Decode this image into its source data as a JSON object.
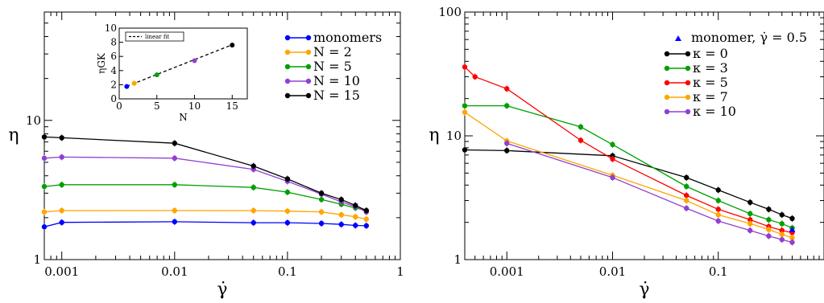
{
  "chart_data": [
    {
      "type": "line",
      "x_scale": "log",
      "y_scale": "log",
      "xlim": [
        0.0007,
        1
      ],
      "ylim": [
        1,
        60
      ],
      "xlabel": "γ̇",
      "ylabel": "η",
      "x_ticks": [
        {
          "value": 0.001,
          "label": "0.001"
        },
        {
          "value": 0.01,
          "label": "0.01"
        },
        {
          "value": 0.1,
          "label": "0.1"
        },
        {
          "value": 1,
          "label": "1"
        }
      ],
      "y_ticks": [
        {
          "value": 1,
          "label": "1"
        },
        {
          "value": 10,
          "label": "10"
        }
      ],
      "legend_position": "top-right",
      "series": [
        {
          "name": "monomers",
          "color": "#0000ff",
          "x": [
            0.0007,
            0.001,
            0.01,
            0.05,
            0.1,
            0.2,
            0.3,
            0.4,
            0.5
          ],
          "y": [
            1.72,
            1.85,
            1.87,
            1.84,
            1.84,
            1.82,
            1.79,
            1.76,
            1.75
          ]
        },
        {
          "name": "N = 2",
          "color": "#ffa500",
          "x": [
            0.0007,
            0.001,
            0.01,
            0.05,
            0.1,
            0.2,
            0.3,
            0.4,
            0.5
          ],
          "y": [
            2.2,
            2.25,
            2.25,
            2.25,
            2.23,
            2.2,
            2.1,
            2.03,
            1.95
          ]
        },
        {
          "name": "N = 5",
          "color": "#00a000",
          "x": [
            0.0007,
            0.001,
            0.01,
            0.05,
            0.1,
            0.2,
            0.3,
            0.4,
            0.5
          ],
          "y": [
            3.35,
            3.45,
            3.45,
            3.3,
            3.05,
            2.7,
            2.5,
            2.35,
            2.25
          ]
        },
        {
          "name": "N = 10",
          "color": "#9040d0",
          "x": [
            0.0007,
            0.001,
            0.01,
            0.05,
            0.1,
            0.2,
            0.3,
            0.4,
            0.5
          ],
          "y": [
            5.35,
            5.45,
            5.35,
            4.45,
            3.65,
            2.95,
            2.6,
            2.4,
            2.2
          ]
        },
        {
          "name": "N = 15",
          "color": "#000000",
          "x": [
            0.0007,
            0.001,
            0.01,
            0.05,
            0.1,
            0.2,
            0.3,
            0.4,
            0.5
          ],
          "y": [
            7.6,
            7.5,
            6.85,
            4.7,
            3.8,
            3.0,
            2.7,
            2.45,
            2.25
          ]
        }
      ],
      "inset": {
        "type": "scatter",
        "xlabel": "N",
        "ylabel": "ηGK",
        "xlim": [
          0,
          17
        ],
        "ylim": [
          0,
          10
        ],
        "x_ticks": [
          0,
          5,
          10,
          15
        ],
        "y_ticks": [
          0,
          2,
          4,
          6,
          8,
          10
        ],
        "points": [
          {
            "x": 1,
            "y": 1.75,
            "color": "#0000ff"
          },
          {
            "x": 2,
            "y": 2.2,
            "color": "#ffa500"
          },
          {
            "x": 5,
            "y": 3.4,
            "color": "#00a000"
          },
          {
            "x": 10,
            "y": 5.4,
            "color": "#9040d0"
          },
          {
            "x": 15,
            "y": 7.6,
            "color": "#000000"
          }
        ],
        "fit": {
          "name": "linear fit",
          "slope": 0.42,
          "intercept": 1.35,
          "x_range": [
            1,
            15
          ]
        }
      }
    },
    {
      "type": "line",
      "x_scale": "log",
      "y_scale": "log",
      "xlim": [
        0.0004,
        1
      ],
      "ylim": [
        1,
        100
      ],
      "xlabel": "γ̇",
      "ylabel": "η",
      "x_ticks": [
        {
          "value": 0.001,
          "label": "0.001"
        },
        {
          "value": 0.01,
          "label": "0.01"
        },
        {
          "value": 0.1,
          "label": "0.1"
        }
      ],
      "y_ticks": [
        {
          "value": 1,
          "label": "1"
        },
        {
          "value": 10,
          "label": "10"
        },
        {
          "value": 100,
          "label": "100"
        }
      ],
      "legend_position": "top-right",
      "marker_series": {
        "name": "monomer, γ̇ = 0.5",
        "color": "#0000ff",
        "x": [
          0.5
        ],
        "y": [
          1.75
        ]
      },
      "series": [
        {
          "name": "κ = 0",
          "color": "#000000",
          "x": [
            0.0004,
            0.001,
            0.01,
            0.05,
            0.1,
            0.2,
            0.3,
            0.4,
            0.5
          ],
          "y": [
            7.7,
            7.6,
            6.9,
            4.6,
            3.65,
            2.9,
            2.55,
            2.3,
            2.15
          ]
        },
        {
          "name": "κ = 3",
          "color": "#00a000",
          "x": [
            0.0004,
            0.001,
            0.005,
            0.01,
            0.05,
            0.1,
            0.2,
            0.3,
            0.4,
            0.5
          ],
          "y": [
            17.5,
            17.5,
            11.8,
            8.5,
            3.9,
            3.0,
            2.35,
            2.1,
            1.95,
            1.8
          ]
        },
        {
          "name": "κ = 5",
          "color": "#ff0000",
          "x": [
            0.0004,
            0.0005,
            0.001,
            0.005,
            0.01,
            0.05,
            0.1,
            0.2,
            0.3,
            0.4,
            0.5
          ],
          "y": [
            36,
            30,
            24,
            9.2,
            6.5,
            3.3,
            2.55,
            2.1,
            1.85,
            1.72,
            1.65
          ]
        },
        {
          "name": "κ = 7",
          "color": "#ffa500",
          "x": [
            0.0004,
            0.001,
            0.01,
            0.05,
            0.1,
            0.2,
            0.3,
            0.4,
            0.5
          ],
          "y": [
            15.5,
            9.1,
            4.8,
            3.0,
            2.3,
            1.95,
            1.75,
            1.6,
            1.5
          ]
        },
        {
          "name": "κ = 10",
          "color": "#9040d0",
          "x": [
            0.001,
            0.01,
            0.05,
            0.1,
            0.2,
            0.3,
            0.4,
            0.5
          ],
          "y": [
            8.7,
            4.6,
            2.6,
            2.05,
            1.72,
            1.55,
            1.45,
            1.38
          ]
        }
      ]
    }
  ]
}
